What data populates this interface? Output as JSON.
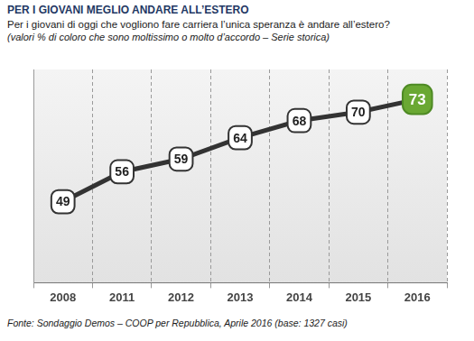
{
  "chart_data": {
    "type": "line",
    "title": "PER I GIOVANI MEGLIO ANDARE ALL’ESTERO",
    "subtitle": [
      "Per i giovani di oggi che vogliono fare carriera l’unica speranza è andare all’estero?",
      "(valori % di coloro che sono moltissimo o molto d’accordo – Serie storica)"
    ],
    "source": "Fonte: Sondaggio Demos – COOP per Repubblica, Aprile 2016 (base: 1327 casi)",
    "categories": [
      "2008",
      "2011",
      "2012",
      "2013",
      "2014",
      "2015",
      "2016"
    ],
    "values": [
      49,
      56,
      59,
      64,
      68,
      70,
      73
    ],
    "color": "#333333",
    "colors": [
      "#ffffff",
      "#ffffff",
      "#ffffff",
      "#ffffff",
      "#ffffff",
      "#ffffff",
      "#6aa833"
    ],
    "marker": "square",
    "ylim": [
      30,
      80
    ],
    "grid": true,
    "data_labels": true,
    "tick_labels": "x"
  }
}
